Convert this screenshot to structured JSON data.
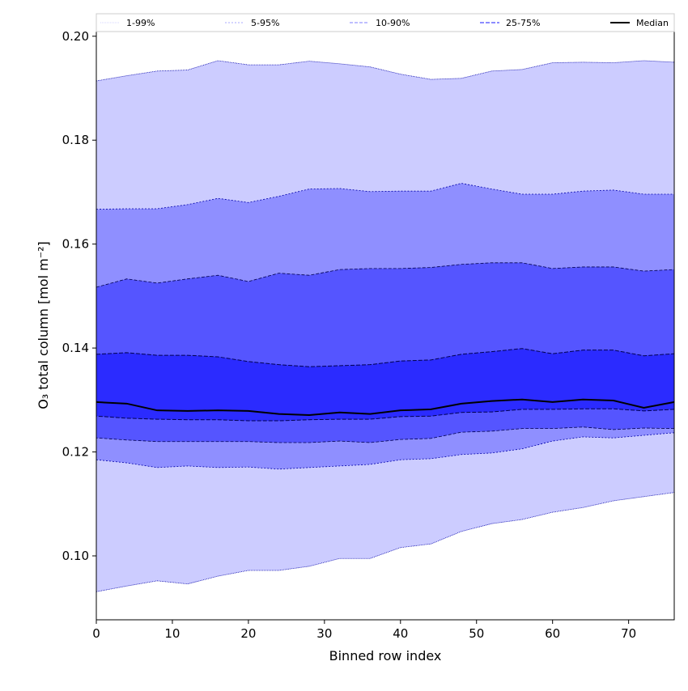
{
  "chart_data": {
    "type": "area",
    "title": "",
    "xlabel": "Binned row index",
    "ylabel": "O₃ total column [mol m⁻²]",
    "xlim": [
      0,
      76
    ],
    "ylim": [
      0.0877,
      0.2009
    ],
    "xticks": [
      0,
      10,
      20,
      30,
      40,
      50,
      60,
      70
    ],
    "xtick_labels": [
      "0",
      "10",
      "20",
      "30",
      "40",
      "50",
      "60",
      "70"
    ],
    "yticks": [
      0.1,
      0.12,
      0.14,
      0.16,
      0.18,
      0.2
    ],
    "ytick_labels": [
      "0.10",
      "0.12",
      "0.14",
      "0.16",
      "0.18",
      "0.20"
    ],
    "grid": false,
    "legend_placement": "top (above plot, horizontal)",
    "x": [
      0,
      4,
      8,
      12,
      16,
      20,
      24,
      28,
      32,
      36,
      40,
      44,
      48,
      52,
      56,
      60,
      64,
      68,
      72,
      76
    ],
    "bands": [
      {
        "name": "1-99%",
        "color": "#ccccff",
        "line_color": "#d6d6ff",
        "lower": [
          0.0931,
          0.0942,
          0.0952,
          0.0946,
          0.0961,
          0.0972,
          0.0972,
          0.098,
          0.0995,
          0.0995,
          0.1016,
          0.1023,
          0.1047,
          0.1062,
          0.107,
          0.1084,
          0.1093,
          0.1106,
          0.1114,
          0.1122
        ],
        "upper": [
          0.1914,
          0.1924,
          0.1933,
          0.1935,
          0.1953,
          0.1945,
          0.1945,
          0.1952,
          0.1947,
          0.1941,
          0.1927,
          0.1917,
          0.1919,
          0.1933,
          0.1936,
          0.1949,
          0.195,
          0.1949,
          0.1953,
          0.195
        ]
      },
      {
        "name": "5-95%",
        "color": "#8f8fff",
        "line_color": "#a8a8ff",
        "lower": [
          0.1185,
          0.1179,
          0.117,
          0.1173,
          0.117,
          0.1171,
          0.1167,
          0.117,
          0.1173,
          0.1176,
          0.1185,
          0.1187,
          0.1195,
          0.1198,
          0.1206,
          0.1221,
          0.1229,
          0.1227,
          0.1232,
          0.1237
        ],
        "upper": [
          0.1667,
          0.1668,
          0.1668,
          0.1676,
          0.1688,
          0.168,
          0.1692,
          0.1706,
          0.1707,
          0.1701,
          0.1702,
          0.1702,
          0.1717,
          0.1706,
          0.1696,
          0.1696,
          0.1702,
          0.1704,
          0.1696,
          0.1696
        ]
      },
      {
        "name": "10-90%",
        "color": "#5555ff",
        "line_color": "#7f7fff",
        "lower": [
          0.1227,
          0.1223,
          0.122,
          0.122,
          0.122,
          0.122,
          0.1218,
          0.1218,
          0.1221,
          0.1218,
          0.1224,
          0.1226,
          0.1238,
          0.124,
          0.1245,
          0.1245,
          0.1248,
          0.1243,
          0.1246,
          0.1245
        ],
        "upper": [
          0.1517,
          0.1533,
          0.1525,
          0.1533,
          0.154,
          0.1528,
          0.1544,
          0.154,
          0.1551,
          0.1553,
          0.1553,
          0.1555,
          0.1561,
          0.1564,
          0.1564,
          0.1553,
          0.1556,
          0.1556,
          0.1548,
          0.1551
        ]
      },
      {
        "name": "25-75%",
        "color": "#2b2bff",
        "line_color": "#6666ff",
        "lower": [
          0.1269,
          0.1265,
          0.1263,
          0.1262,
          0.1262,
          0.126,
          0.126,
          0.1262,
          0.1263,
          0.1263,
          0.1268,
          0.1269,
          0.1276,
          0.1277,
          0.1282,
          0.1282,
          0.1283,
          0.1283,
          0.1279,
          0.1282
        ],
        "upper": [
          0.1388,
          0.1391,
          0.1386,
          0.1386,
          0.1383,
          0.1374,
          0.1368,
          0.1364,
          0.1366,
          0.1368,
          0.1375,
          0.1377,
          0.1388,
          0.1393,
          0.1399,
          0.1389,
          0.1396,
          0.1396,
          0.1385,
          0.1389
        ]
      }
    ],
    "series": [
      {
        "name": "Median",
        "color": "#000000",
        "values": [
          0.1296,
          0.1293,
          0.128,
          0.1279,
          0.128,
          0.1279,
          0.1273,
          0.1271,
          0.1276,
          0.1273,
          0.128,
          0.1282,
          0.1293,
          0.1298,
          0.1301,
          0.1296,
          0.1301,
          0.1299,
          0.1285,
          0.1296
        ]
      }
    ],
    "legend": [
      "1-99%",
      "5-95%",
      "10-90%",
      "25-75%",
      "Median"
    ]
  }
}
